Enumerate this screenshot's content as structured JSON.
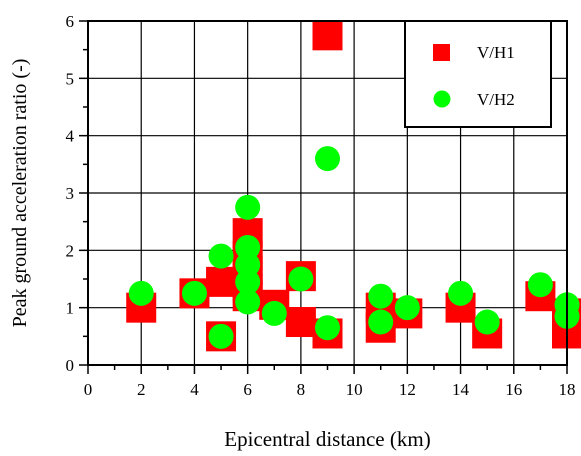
{
  "chart_data": {
    "type": "scatter",
    "title": "",
    "xlabel": "Epicentral distance (km)",
    "ylabel": "Peak ground acceleration ratio (-)",
    "xlim": [
      0,
      18
    ],
    "ylim": [
      0,
      6
    ],
    "x_ticks": [
      "0",
      "2",
      "4",
      "6",
      "8",
      "10",
      "12",
      "14",
      "16",
      "18"
    ],
    "y_ticks": [
      "0",
      "1",
      "2",
      "3",
      "4",
      "5",
      "6"
    ],
    "grid": true,
    "legend_position": "top-right",
    "series": [
      {
        "name": "V/H1",
        "marker": "square",
        "color": "#ff0000",
        "points": [
          [
            2,
            1.0
          ],
          [
            4,
            1.25
          ],
          [
            5,
            1.45
          ],
          [
            5,
            0.5
          ],
          [
            6,
            2.3
          ],
          [
            6,
            1.9
          ],
          [
            6,
            1.65
          ],
          [
            6,
            1.35
          ],
          [
            6,
            1.2
          ],
          [
            7,
            1.05
          ],
          [
            8,
            1.55
          ],
          [
            8,
            0.75
          ],
          [
            9,
            5.75
          ],
          [
            9,
            0.55
          ],
          [
            11,
            1.0
          ],
          [
            11,
            0.65
          ],
          [
            12,
            0.9
          ],
          [
            14,
            1.0
          ],
          [
            15,
            0.55
          ],
          [
            17,
            1.2
          ],
          [
            18,
            0.9
          ],
          [
            18,
            0.55
          ]
        ]
      },
      {
        "name": "V/H2",
        "marker": "circle",
        "color": "#00ff00",
        "points": [
          [
            2,
            1.25
          ],
          [
            4,
            1.25
          ],
          [
            5,
            1.9
          ],
          [
            5,
            0.5
          ],
          [
            6,
            2.75
          ],
          [
            6,
            2.05
          ],
          [
            6,
            1.75
          ],
          [
            6,
            1.45
          ],
          [
            6,
            1.1
          ],
          [
            7,
            0.9
          ],
          [
            8,
            1.5
          ],
          [
            9,
            3.6
          ],
          [
            9,
            0.65
          ],
          [
            11,
            1.2
          ],
          [
            11,
            0.75
          ],
          [
            12,
            1.0
          ],
          [
            14,
            1.25
          ],
          [
            15,
            0.75
          ],
          [
            17,
            1.4
          ],
          [
            18,
            1.05
          ],
          [
            18,
            0.85
          ]
        ]
      }
    ]
  }
}
